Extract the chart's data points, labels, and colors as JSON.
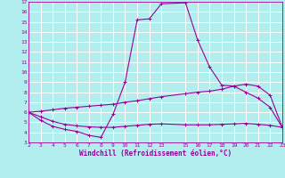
{
  "xlabel": "Windchill (Refroidissement éolien,°C)",
  "xlim": [
    2,
    23
  ],
  "ylim": [
    3,
    17
  ],
  "xticks": [
    2,
    3,
    4,
    5,
    6,
    7,
    8,
    9,
    10,
    11,
    12,
    13,
    15,
    16,
    17,
    18,
    19,
    20,
    21,
    22,
    23
  ],
  "yticks": [
    3,
    4,
    5,
    6,
    7,
    8,
    9,
    10,
    11,
    12,
    13,
    14,
    15,
    16,
    17
  ],
  "bg_color": "#b2eeee",
  "grid_color": "#ffffff",
  "line_color": "#990099",
  "line1_x": [
    2,
    3,
    4,
    5,
    6,
    7,
    8,
    9,
    10,
    11,
    12,
    13,
    15,
    16,
    17,
    18,
    19,
    20,
    21,
    22,
    23
  ],
  "line1_y": [
    6.0,
    5.2,
    4.6,
    4.3,
    4.1,
    3.7,
    3.5,
    5.8,
    9.0,
    15.2,
    15.3,
    16.8,
    16.9,
    13.2,
    10.5,
    8.7,
    8.6,
    8.0,
    7.4,
    6.5,
    4.5
  ],
  "line2_x": [
    2,
    3,
    4,
    5,
    6,
    7,
    8,
    9,
    10,
    11,
    12,
    13,
    15,
    16,
    17,
    18,
    19,
    20,
    21,
    22,
    23
  ],
  "line2_y": [
    6.0,
    6.1,
    6.25,
    6.4,
    6.5,
    6.6,
    6.7,
    6.8,
    7.0,
    7.15,
    7.35,
    7.55,
    7.85,
    8.0,
    8.1,
    8.3,
    8.6,
    8.8,
    8.6,
    7.7,
    4.55
  ],
  "line3_x": [
    2,
    3,
    4,
    5,
    6,
    7,
    8,
    9,
    10,
    11,
    12,
    13,
    15,
    16,
    17,
    18,
    19,
    20,
    21,
    22,
    23
  ],
  "line3_y": [
    6.0,
    5.55,
    5.1,
    4.8,
    4.65,
    4.55,
    4.5,
    4.5,
    4.6,
    4.7,
    4.8,
    4.85,
    4.75,
    4.75,
    4.75,
    4.8,
    4.85,
    4.9,
    4.8,
    4.7,
    4.5
  ]
}
